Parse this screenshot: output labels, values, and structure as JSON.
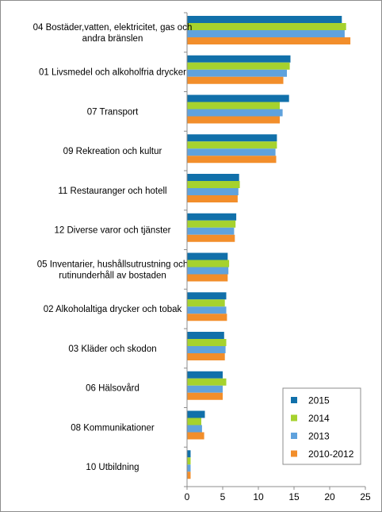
{
  "chart_data": {
    "type": "bar",
    "orientation": "horizontal",
    "categories": [
      "04 Bostäder,vatten, elektricitet, gas och andra bränslen",
      "01 Livsmedel och alkoholfria drycker",
      "07 Transport",
      "09 Rekreation och kultur",
      "11 Restauranger och hotell",
      "12 Diverse varor och tjänster",
      "05 Inventarier, hushållsutrustning och rutinunderhåll av bostaden",
      "02 Alkoholaltiga drycker och tobak",
      "03 Kläder och skodon",
      "06 Hälsovård",
      "08 Kommunikationer",
      "10 Utbildning"
    ],
    "category_lines": [
      [
        "04 Bostäder,vatten, elektricitet, gas och",
        "andra bränslen"
      ],
      [
        "01 Livsmedel och alkoholfria drycker"
      ],
      [
        "07 Transport"
      ],
      [
        "09 Rekreation och kultur"
      ],
      [
        "11 Restauranger och hotell"
      ],
      [
        "12 Diverse varor och tjänster"
      ],
      [
        "05 Inventarier, hushållsutrustning och",
        "rutinunderhåll av bostaden"
      ],
      [
        "02 Alkoholaltiga drycker och tobak"
      ],
      [
        "03 Kläder och skodon"
      ],
      [
        "06 Hälsovård"
      ],
      [
        "08 Kommunikationer"
      ],
      [
        "10 Utbildning"
      ]
    ],
    "series": [
      {
        "name": "2015",
        "color": "#1170aa",
        "values": [
          21.7,
          14.5,
          14.3,
          12.6,
          7.3,
          6.9,
          5.7,
          5.5,
          5.2,
          5.0,
          2.5,
          0.5
        ]
      },
      {
        "name": "2014",
        "color": "#a6d22e",
        "values": [
          22.3,
          14.4,
          13.0,
          12.6,
          7.4,
          6.8,
          5.9,
          5.3,
          5.5,
          5.5,
          2.0,
          0.5
        ]
      },
      {
        "name": "2013",
        "color": "#5fa2dd",
        "values": [
          22.1,
          14.0,
          13.4,
          12.4,
          7.2,
          6.6,
          5.8,
          5.5,
          5.4,
          5.0,
          2.1,
          0.5
        ]
      },
      {
        "name": "2010-2012",
        "color": "#f28e2b",
        "values": [
          22.9,
          13.5,
          13.0,
          12.5,
          7.1,
          6.7,
          5.7,
          5.6,
          5.3,
          5.0,
          2.4,
          0.5
        ]
      }
    ],
    "xlim": [
      0,
      25
    ],
    "xticks": [
      0,
      5,
      10,
      15,
      20,
      25
    ],
    "title": "",
    "xlabel": "",
    "ylabel": "",
    "grid": false,
    "legend_position": "bottom-right"
  }
}
